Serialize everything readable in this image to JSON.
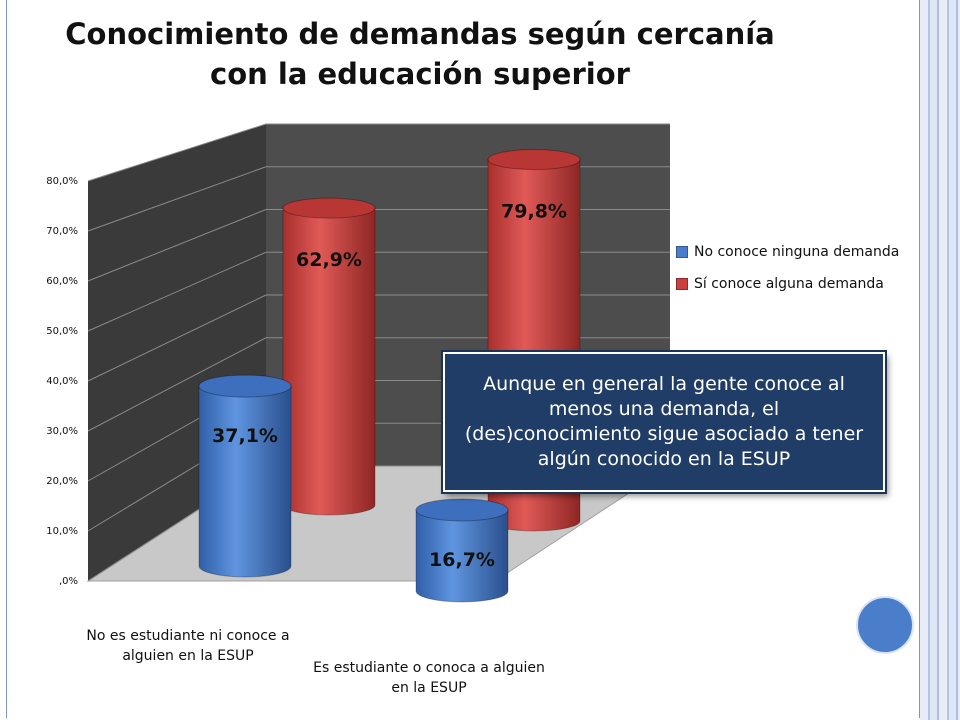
{
  "chart_data": {
    "type": "bar",
    "title": "Conocimiento de demandas según cercanía con la educación superior",
    "categories": [
      "No es estudiante ni conoce a alguien en la ESUP",
      "Es estudiante o conoca a alguien en la ESUP"
    ],
    "series": [
      {
        "name": "No conoce ninguna demanda",
        "values": [
          37.1,
          16.7
        ],
        "labels": [
          "37,1%",
          "16,7%"
        ],
        "color": "#4a7ecb"
      },
      {
        "name": "Sí conoce alguna demanda",
        "values": [
          62.9,
          79.8
        ],
        "labels": [
          "62,9%",
          "79,8%"
        ],
        "color": "#c9403e"
      }
    ],
    "yticks": [
      ",0%",
      "10,0%",
      "20,0%",
      "30,0%",
      "40,0%",
      "50,0%",
      "60,0%",
      "70,0%",
      "80,0%"
    ],
    "ylim": [
      0,
      80
    ],
    "legend": "right",
    "grid": true
  },
  "annotation": "Aunque en general la gente conoce al menos una demanda, el (des)conocimiento sigue asociado a tener algún conocido en la ESUP"
}
